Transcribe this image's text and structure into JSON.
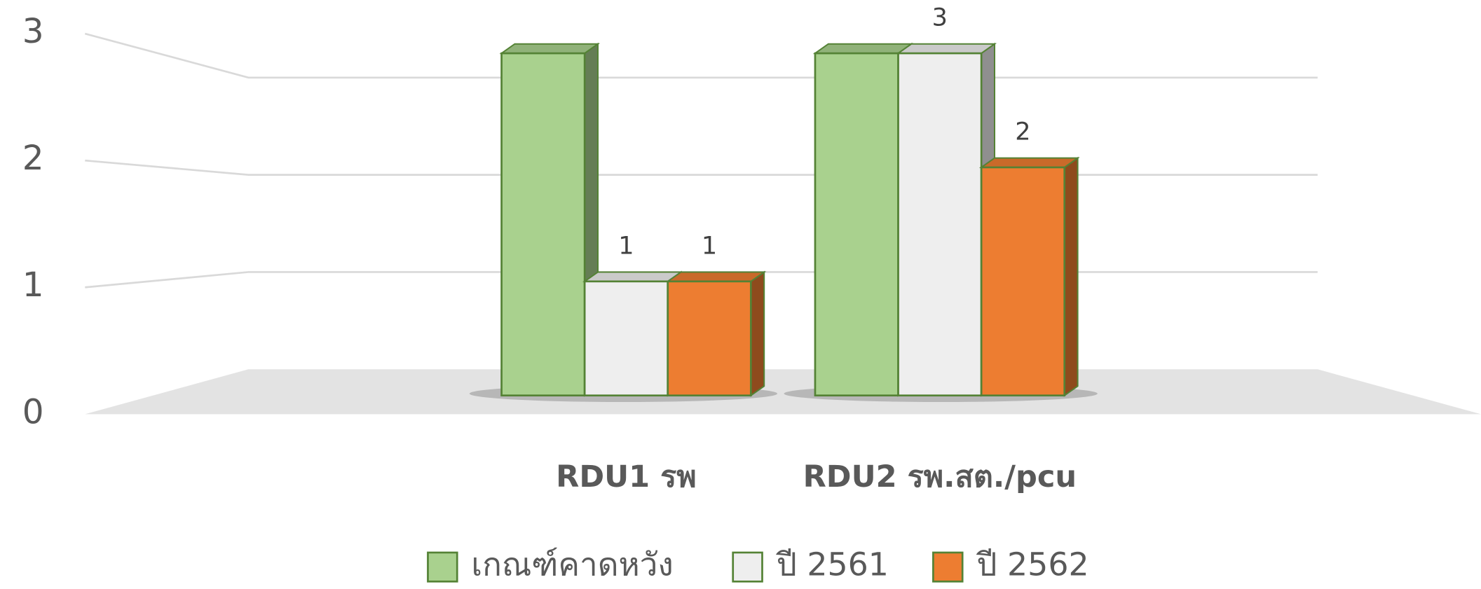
{
  "chart_data": {
    "type": "bar3d",
    "categories": [
      "RDU1 รพ",
      "RDU2 รพ.สต./pcu"
    ],
    "series": [
      {
        "name": "เกณฑ์คาดหวัง",
        "color": "#a9d18e",
        "values": [
          3,
          3
        ],
        "show_labels": false
      },
      {
        "name": "ปี 2561",
        "color": "#eeeeee",
        "values": [
          1,
          3
        ],
        "show_labels": true
      },
      {
        "name": "ปี 2562",
        "color": "#ed7d31",
        "values": [
          1,
          2
        ],
        "show_labels": true
      }
    ],
    "ylim": [
      0,
      3
    ],
    "yticks": [
      0,
      1,
      2,
      3
    ],
    "grid": true,
    "legend": "bottom"
  }
}
